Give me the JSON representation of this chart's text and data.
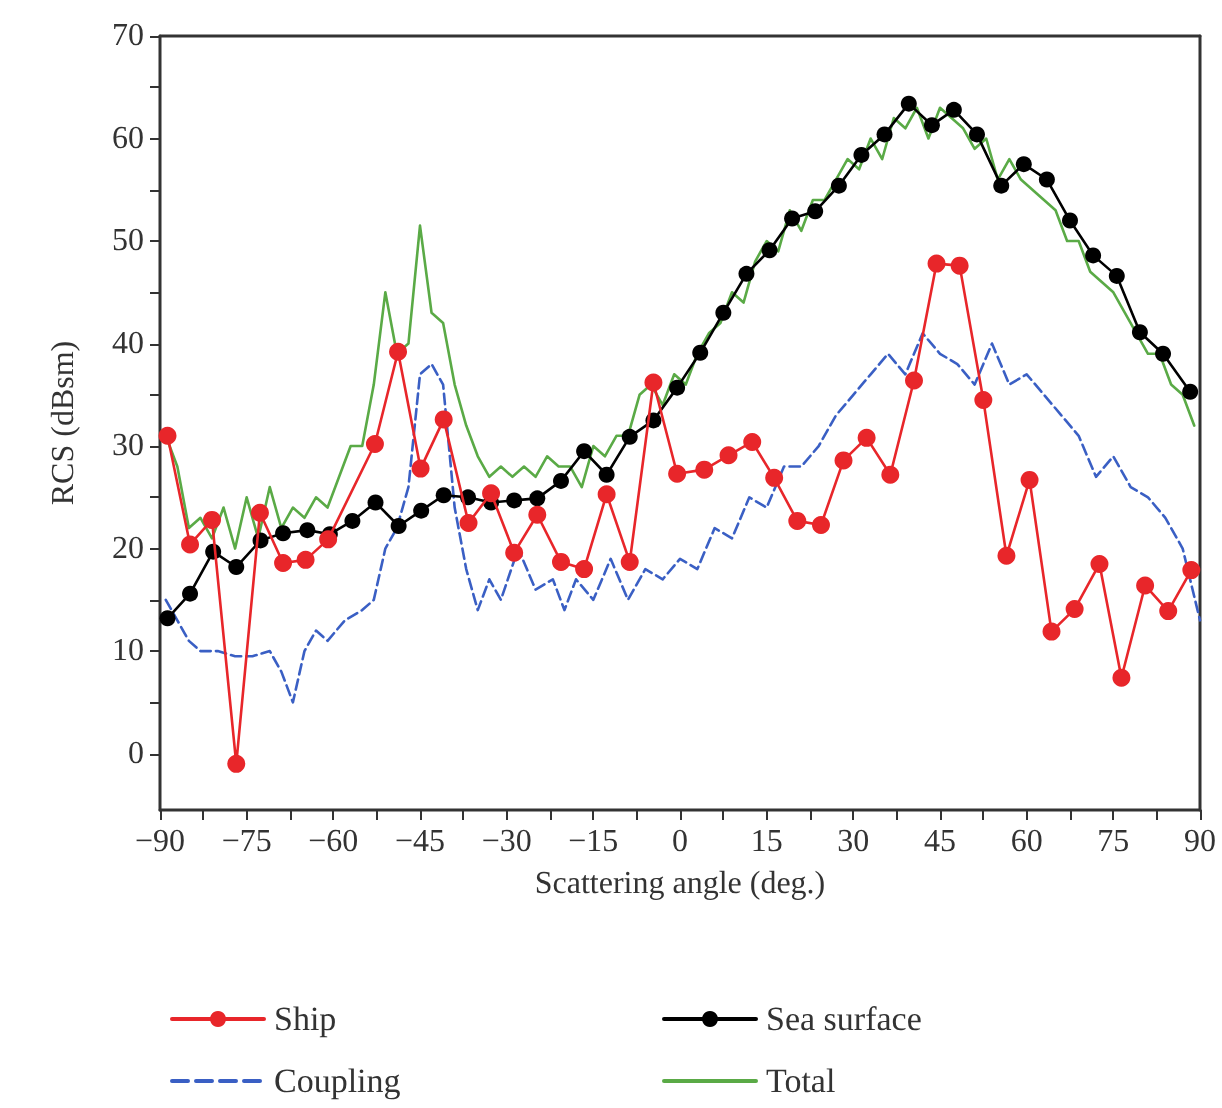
{
  "chart_data": {
    "type": "line",
    "xlabel": "Scattering angle (deg.)",
    "ylabel": "RCS (dBsm)",
    "xlim": [
      -90,
      90
    ],
    "ylim": [
      -5.5,
      70
    ],
    "xticks": [
      {
        "value": -90,
        "label": "−90"
      },
      {
        "value": -75,
        "label": "−75"
      },
      {
        "value": -60,
        "label": "−60"
      },
      {
        "value": -45,
        "label": "−45"
      },
      {
        "value": -30,
        "label": "−30"
      },
      {
        "value": -15,
        "label": "−15"
      },
      0,
      15,
      30,
      45,
      60,
      75,
      90
    ],
    "yticks": [
      0,
      10,
      20,
      30,
      40,
      50,
      60,
      70
    ],
    "grid": false,
    "legend": "bottom",
    "series": [
      {
        "name": "Ship",
        "color": "#e8262a",
        "marker": "circle",
        "x": [
          -88.7,
          -84.8,
          -81,
          -76.8,
          -72.7,
          -68.7,
          -64.8,
          -60.9,
          -52.8,
          -48.8,
          -44.9,
          -40.9,
          -36.6,
          -32.7,
          -28.7,
          -24.7,
          -20.6,
          -16.6,
          -12.7,
          -8.7,
          -4.6,
          -0.5,
          4.2,
          8.4,
          12.5,
          16.3,
          20.3,
          24.4,
          28.3,
          32.3,
          36.4,
          40.5,
          44.4,
          48.4,
          52.5,
          56.5,
          60.5,
          64.3,
          68.3,
          72.6,
          76.4,
          80.5,
          84.5,
          88.5
        ],
        "values": [
          31,
          20.4,
          22.8,
          -1,
          23.5,
          18.6,
          18.9,
          20.9,
          30.2,
          39.2,
          27.8,
          32.6,
          22.5,
          25.4,
          19.6,
          23.3,
          18.7,
          18,
          25.3,
          18.7,
          36.2,
          27.3,
          27.7,
          29.1,
          30.4,
          26.9,
          22.7,
          22.3,
          28.6,
          30.8,
          27.2,
          36.4,
          47.8,
          47.6,
          34.5,
          19.3,
          26.7,
          11.9,
          14.1,
          18.5,
          7.4,
          16.4,
          13.9,
          17.9
        ]
      },
      {
        "name": "Sea surface",
        "color": "#000000",
        "marker": "circle",
        "x": [
          -88.7,
          -84.8,
          -80.8,
          -76.8,
          -72.6,
          -68.7,
          -64.5,
          -60.6,
          -56.7,
          -52.7,
          -48.7,
          -44.8,
          -40.9,
          -36.7,
          -32.7,
          -28.7,
          -24.7,
          -20.6,
          -16.6,
          -12.7,
          -8.7,
          -4.6,
          -0.5,
          3.5,
          7.5,
          11.5,
          15.5,
          19.4,
          23.4,
          27.5,
          31.4,
          35.4,
          39.6,
          43.6,
          47.4,
          51.4,
          55.6,
          59.5,
          63.5,
          67.5,
          71.5,
          75.6,
          79.6,
          83.6,
          88.3
        ],
        "values": [
          13.2,
          15.6,
          19.7,
          18.2,
          20.8,
          21.5,
          21.8,
          21.4,
          22.7,
          24.5,
          22.2,
          23.7,
          25.2,
          25,
          24.5,
          24.7,
          24.9,
          26.6,
          29.5,
          27.2,
          30.9,
          32.5,
          35.7,
          39.1,
          43,
          46.8,
          49.1,
          52.2,
          52.9,
          55.4,
          58.4,
          60.4,
          63.4,
          61.3,
          62.8,
          60.4,
          55.4,
          57.5,
          56,
          52,
          48.6,
          46.6,
          41.1,
          39,
          35.3
        ]
      },
      {
        "name": "Coupling",
        "color": "#3a5fc4",
        "marker": "none",
        "line_style": "dashed",
        "x": [
          -89,
          -87,
          -85,
          -83,
          -80,
          -77,
          -74,
          -71,
          -69,
          -67,
          -65,
          -63,
          -61,
          -58,
          -55,
          -53,
          -51,
          -49,
          -47,
          -45,
          -43,
          -41,
          -39,
          -37,
          -35,
          -33,
          -31,
          -28,
          -25,
          -22,
          -20,
          -18,
          -15,
          -12,
          -9,
          -6,
          -3,
          0,
          3,
          6,
          9,
          12,
          15,
          18,
          21,
          24,
          27,
          30,
          33,
          36,
          39,
          42,
          45,
          48,
          51,
          54,
          57,
          60,
          63,
          66,
          69,
          72,
          75,
          78,
          81,
          84,
          87,
          90
        ],
        "values": [
          15,
          13,
          11,
          10,
          10,
          9.5,
          9.5,
          10,
          8,
          5,
          10,
          12,
          11,
          13,
          14,
          15,
          20,
          22,
          26,
          37,
          38,
          36,
          24,
          18,
          14,
          17,
          15,
          20,
          16,
          17,
          14,
          17,
          15,
          19,
          15,
          18,
          17,
          19,
          18,
          22,
          21,
          25,
          24,
          28,
          28,
          30,
          33,
          35,
          37,
          39,
          37,
          41,
          39,
          38,
          36,
          40,
          36,
          37,
          35,
          33,
          31,
          27,
          29,
          26,
          25,
          23,
          20,
          13
        ]
      },
      {
        "name": "Total",
        "color": "#5aaa46",
        "marker": "none",
        "x": [
          -89,
          -87,
          -85,
          -83,
          -81,
          -79,
          -77,
          -75,
          -73,
          -71,
          -69,
          -67,
          -65,
          -63,
          -61,
          -59,
          -57,
          -55,
          -53,
          -51,
          -49,
          -47,
          -45,
          -43,
          -41,
          -39,
          -37,
          -35,
          -33,
          -31,
          -29,
          -27,
          -25,
          -23,
          -21,
          -19,
          -17,
          -15,
          -13,
          -11,
          -9,
          -7,
          -5,
          -3,
          -1,
          1,
          3,
          5,
          7,
          9,
          11,
          13,
          15,
          17,
          19,
          21,
          23,
          25,
          27,
          29,
          31,
          33,
          35,
          37,
          39,
          41,
          43,
          45,
          47,
          49,
          51,
          53,
          55,
          57,
          59,
          61,
          63,
          65,
          67,
          69,
          71,
          73,
          75,
          77,
          79,
          81,
          83,
          85,
          87,
          89
        ],
        "values": [
          31,
          28,
          22,
          23,
          21,
          24,
          20,
          25,
          21,
          26,
          22,
          24,
          23,
          25,
          24,
          27,
          30,
          30,
          36,
          45,
          39,
          40,
          51.5,
          43,
          42,
          36,
          32,
          29,
          27,
          28,
          27,
          28,
          27,
          29,
          28,
          28,
          26,
          30,
          29,
          31,
          31,
          35,
          36,
          34,
          37,
          36,
          39,
          41,
          42,
          45,
          44,
          48,
          50,
          49,
          53,
          51,
          54,
          54,
          56,
          58,
          57,
          60,
          58,
          62,
          61,
          63,
          60,
          63,
          62,
          61,
          59,
          60,
          56,
          58,
          56,
          55,
          54,
          53,
          50,
          50,
          47,
          46,
          45,
          43,
          41,
          39,
          39,
          36,
          35,
          32
        ]
      }
    ]
  }
}
